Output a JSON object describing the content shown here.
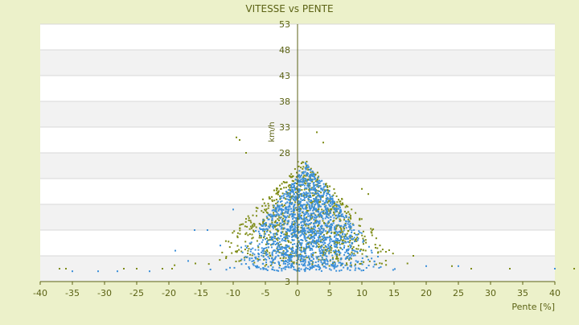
{
  "chart_data": {
    "type": "scatter",
    "title": "VITESSE vs PENTE",
    "xlabel": "Pente [%]",
    "ylabel": "km/h",
    "xlim": [
      -40,
      40
    ],
    "ylim": [
      3,
      53
    ],
    "x_ticks": [
      "-40",
      "-35",
      "-30",
      "-25",
      "-20",
      "-15",
      "-10",
      "-5",
      "0",
      "5",
      "10",
      "15",
      "20",
      "25",
      "30",
      "35",
      "40"
    ],
    "y_ticks": [
      "53",
      "48",
      "43",
      "38",
      "33",
      "28",
      "",
      "",
      "",
      "",
      "3"
    ],
    "grid": true,
    "legend": "none",
    "colors": {
      "background": "#ecf1ca",
      "plot_area": "#ffffff",
      "band": "#f2f2f2",
      "text": "#5b6214",
      "axis": "#5b6214",
      "series_olive": "#7e8c16",
      "series_blue": "#3b8fd9"
    },
    "series": [
      {
        "color": "#7e8c16",
        "cluster": {
          "x_mean": 1.0,
          "x_sd": 5.0,
          "y_min": 6,
          "y_peak": 27,
          "count": 900
        },
        "points": [
          [
            -37,
            5.5
          ],
          [
            -36,
            5.5
          ],
          [
            -27,
            5.5
          ],
          [
            -25,
            5.5
          ],
          [
            -21,
            5.5
          ],
          [
            -19.5,
            5.5
          ],
          [
            -9.5,
            31
          ],
          [
            -9,
            30.5
          ],
          [
            -8,
            28
          ],
          [
            3,
            32
          ],
          [
            4,
            30
          ],
          [
            10,
            21
          ],
          [
            11,
            20
          ],
          [
            18,
            8
          ],
          [
            24,
            6
          ],
          [
            27,
            5.5
          ],
          [
            33,
            5.5
          ],
          [
            43,
            5.5
          ]
        ]
      },
      {
        "color": "#3b8fd9",
        "cluster": {
          "x_mean": 1.5,
          "x_sd": 4.0,
          "y_min": 5,
          "y_peak": 26,
          "count": 1600
        },
        "points": [
          [
            -35,
            5
          ],
          [
            -31,
            5
          ],
          [
            -28,
            5
          ],
          [
            -23,
            5
          ],
          [
            -19,
            9
          ],
          [
            -17,
            7
          ],
          [
            -16,
            13
          ],
          [
            -14,
            13
          ],
          [
            -12,
            10
          ],
          [
            -10,
            17
          ],
          [
            20,
            6
          ],
          [
            25,
            6
          ],
          [
            40,
            5.5
          ]
        ]
      }
    ]
  }
}
